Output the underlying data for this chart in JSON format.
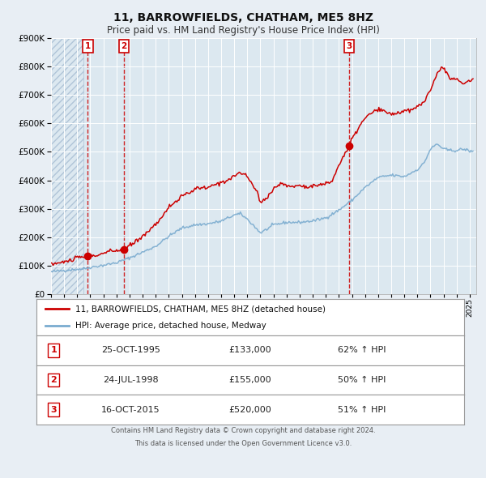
{
  "title": "11, BARROWFIELDS, CHATHAM, ME5 8HZ",
  "subtitle": "Price paid vs. HM Land Registry's House Price Index (HPI)",
  "hpi_line_color": "#7aabcf",
  "price_line_color": "#cc0000",
  "marker_color": "#cc0000",
  "bg_color": "#e8eef4",
  "plot_bg_color": "#dce8f0",
  "grid_color": "#ffffff",
  "vline_color_dashed": "#cc0000",
  "ylim": [
    0,
    900000
  ],
  "yticks": [
    0,
    100000,
    200000,
    300000,
    400000,
    500000,
    600000,
    700000,
    800000,
    900000
  ],
  "xlim_start": 1993.0,
  "xlim_end": 2025.5,
  "hatch_end": 1995.5,
  "transactions": [
    {
      "label": "1",
      "date": "25-OCT-1995",
      "year": 1995.81,
      "price": 133000,
      "pct": "62%",
      "dir": "↑"
    },
    {
      "label": "2",
      "date": "24-JUL-1998",
      "year": 1998.56,
      "price": 155000,
      "pct": "50%",
      "dir": "↑"
    },
    {
      "label": "3",
      "date": "16-OCT-2015",
      "year": 2015.79,
      "price": 520000,
      "pct": "51%",
      "dir": "↑"
    }
  ],
  "legend_line1": "11, BARROWFIELDS, CHATHAM, ME5 8HZ (detached house)",
  "legend_line2": "HPI: Average price, detached house, Medway",
  "footer1": "Contains HM Land Registry data © Crown copyright and database right 2024.",
  "footer2": "This data is licensed under the Open Government Licence v3.0."
}
